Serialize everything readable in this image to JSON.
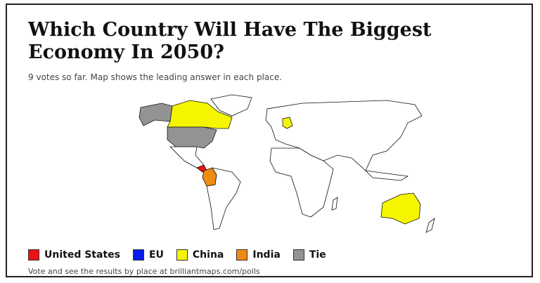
{
  "header": {
    "title": [
      "Which Country Will Have The Biggest",
      "Economy In 2050?"
    ],
    "subtitle": "9 votes so far. Map shows the leading answer in each place."
  },
  "legend": [
    {
      "label": "United States",
      "color": "#ee1111"
    },
    {
      "label": "EU",
      "color": "#0a1aee"
    },
    {
      "label": "China",
      "color": "#f5f500"
    },
    {
      "label": "India",
      "color": "#f08a10"
    },
    {
      "label": "Tie",
      "color": "#939393"
    }
  ],
  "footer": "Vote and see the results by place at brilliantmaps.com/polls"
}
